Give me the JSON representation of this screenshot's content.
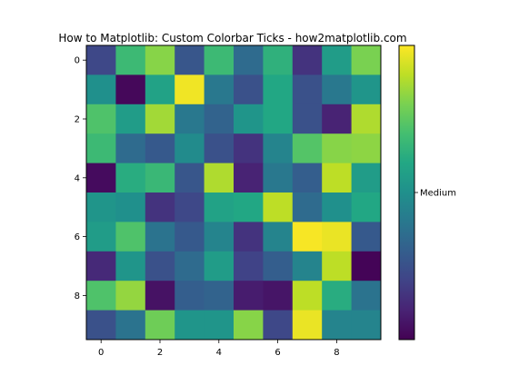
{
  "chart_data": {
    "type": "heatmap",
    "title": "How to Matplotlib: Custom Colorbar Ticks - how2matplotlib.com",
    "xlabel": "",
    "ylabel": "",
    "colormap": "viridis",
    "x_ticks": [
      0,
      2,
      4,
      6,
      8
    ],
    "y_ticks": [
      0,
      2,
      4,
      6,
      8
    ],
    "colorbar": {
      "tick_labels": [
        "Medium"
      ],
      "tick_values": [
        0.5
      ]
    },
    "values": [
      [
        0.22,
        0.68,
        0.82,
        0.27,
        0.68,
        0.35,
        0.64,
        0.15,
        0.55,
        0.8
      ],
      [
        0.5,
        0.02,
        0.58,
        0.98,
        0.4,
        0.25,
        0.6,
        0.25,
        0.4,
        0.52
      ],
      [
        0.72,
        0.55,
        0.86,
        0.4,
        0.32,
        0.52,
        0.6,
        0.25,
        0.1,
        0.88
      ],
      [
        0.68,
        0.35,
        0.28,
        0.48,
        0.25,
        0.15,
        0.45,
        0.73,
        0.82,
        0.83
      ],
      [
        0.03,
        0.62,
        0.67,
        0.27,
        0.88,
        0.1,
        0.4,
        0.3,
        0.9,
        0.55
      ],
      [
        0.52,
        0.5,
        0.15,
        0.22,
        0.58,
        0.6,
        0.9,
        0.35,
        0.5,
        0.6
      ],
      [
        0.55,
        0.72,
        0.38,
        0.28,
        0.45,
        0.15,
        0.45,
        0.99,
        0.97,
        0.28
      ],
      [
        0.12,
        0.52,
        0.25,
        0.35,
        0.55,
        0.2,
        0.3,
        0.45,
        0.9,
        0.01
      ],
      [
        0.72,
        0.84,
        0.05,
        0.3,
        0.32,
        0.08,
        0.06,
        0.9,
        0.62,
        0.38
      ],
      [
        0.25,
        0.38,
        0.78,
        0.52,
        0.52,
        0.82,
        0.22,
        0.97,
        0.45,
        0.45
      ]
    ]
  }
}
